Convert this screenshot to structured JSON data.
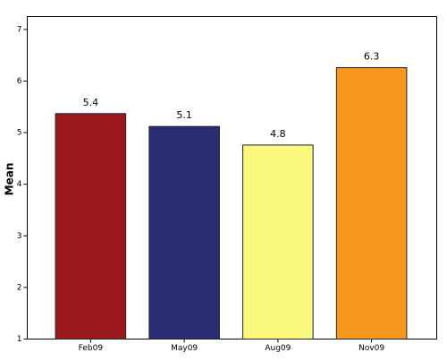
{
  "chart_data": {
    "type": "bar",
    "y_label": "Mean",
    "categories": [
      "Feb09",
      "May09",
      "Aug09",
      "Nov09"
    ],
    "values": [
      5.37,
      5.12,
      4.76,
      6.26
    ],
    "value_labels": [
      "5.4",
      "5.1",
      "4.8",
      "6.3"
    ],
    "colors": [
      "#9b191d",
      "#2a2d73",
      "#f9f77c",
      "#f7981f"
    ],
    "ylim": [
      1,
      7.25
    ],
    "yticks": [
      1,
      2,
      3,
      4,
      5,
      6,
      7
    ],
    "grid": false
  }
}
